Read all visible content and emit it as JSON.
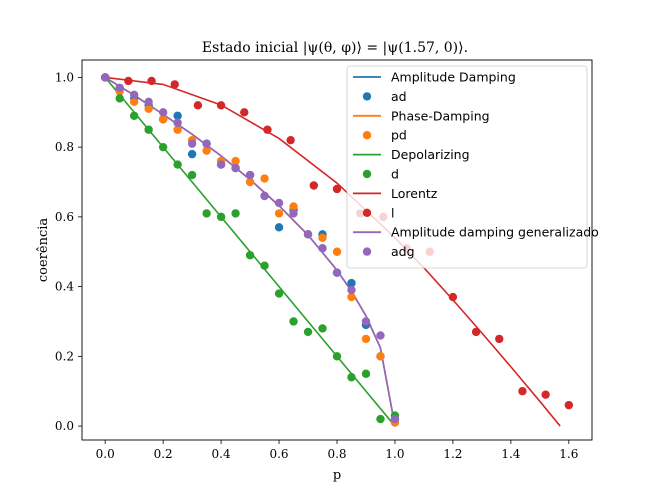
{
  "chart_data": {
    "type": "scatter",
    "title": "Estado inicial |ψ(θ, φ)⟩ = |ψ(1.57, 0)⟩.",
    "xlabel": "p",
    "ylabel": "coerência",
    "xlim": [
      -0.08,
      1.68
    ],
    "ylim": [
      -0.04,
      1.05
    ],
    "xticks": [
      0.0,
      0.2,
      0.4,
      0.6,
      0.8,
      1.0,
      1.2,
      1.4,
      1.6
    ],
    "yticks": [
      0.0,
      0.2,
      0.4,
      0.6,
      0.8,
      1.0
    ],
    "grid": false,
    "legend_position": "top-right",
    "series": [
      {
        "name": "Amplitude Damping",
        "kind": "line",
        "color": "#1f77b4",
        "x": [
          0,
          0.1,
          0.2,
          0.3,
          0.4,
          0.5,
          0.6,
          0.7,
          0.8,
          0.85,
          0.9,
          0.95,
          1.0
        ],
        "y": [
          1.0,
          0.949,
          0.894,
          0.837,
          0.775,
          0.707,
          0.632,
          0.548,
          0.447,
          0.387,
          0.316,
          0.224,
          0.0
        ]
      },
      {
        "name": "ad",
        "kind": "scatter",
        "color": "#1f77b4",
        "x": [
          0.0,
          0.05,
          0.1,
          0.15,
          0.2,
          0.25,
          0.3,
          0.35,
          0.4,
          0.45,
          0.5,
          0.55,
          0.6,
          0.65,
          0.7,
          0.75,
          0.8,
          0.85,
          0.9,
          0.95,
          1.0
        ],
        "y": [
          1.0,
          0.97,
          0.94,
          0.92,
          0.88,
          0.89,
          0.78,
          0.81,
          0.75,
          0.74,
          0.72,
          0.66,
          0.57,
          0.62,
          0.55,
          0.55,
          0.44,
          0.41,
          0.29,
          0.2,
          0.02
        ]
      },
      {
        "name": "Phase-Damping",
        "kind": "line",
        "color": "#ff7f0e",
        "x": [
          0,
          0.1,
          0.2,
          0.3,
          0.4,
          0.5,
          0.6,
          0.7,
          0.8,
          0.85,
          0.9,
          0.95,
          1.0
        ],
        "y": [
          1.0,
          0.949,
          0.894,
          0.837,
          0.775,
          0.707,
          0.632,
          0.548,
          0.447,
          0.387,
          0.316,
          0.224,
          0.0
        ]
      },
      {
        "name": "pd",
        "kind": "scatter",
        "color": "#ff7f0e",
        "x": [
          0.0,
          0.05,
          0.1,
          0.15,
          0.2,
          0.25,
          0.3,
          0.35,
          0.4,
          0.45,
          0.5,
          0.55,
          0.6,
          0.65,
          0.7,
          0.75,
          0.8,
          0.85,
          0.9,
          0.95,
          1.0
        ],
        "y": [
          1.0,
          0.96,
          0.93,
          0.91,
          0.88,
          0.85,
          0.82,
          0.79,
          0.76,
          0.76,
          0.7,
          0.71,
          0.61,
          0.63,
          0.55,
          0.54,
          0.5,
          0.37,
          0.25,
          0.2,
          0.01
        ]
      },
      {
        "name": "Depolarizing",
        "kind": "line",
        "color": "#2ca02c",
        "x": [
          0,
          1.0
        ],
        "y": [
          1.0,
          0.0
        ]
      },
      {
        "name": "d",
        "kind": "scatter",
        "color": "#2ca02c",
        "x": [
          0.0,
          0.05,
          0.1,
          0.15,
          0.2,
          0.25,
          0.3,
          0.35,
          0.4,
          0.45,
          0.5,
          0.55,
          0.6,
          0.65,
          0.7,
          0.75,
          0.8,
          0.85,
          0.9,
          0.95,
          1.0
        ],
        "y": [
          1.0,
          0.94,
          0.89,
          0.85,
          0.8,
          0.75,
          0.72,
          0.61,
          0.6,
          0.61,
          0.49,
          0.46,
          0.38,
          0.3,
          0.27,
          0.28,
          0.2,
          0.14,
          0.15,
          0.02,
          0.03
        ]
      },
      {
        "name": "Lorentz",
        "kind": "line",
        "color": "#d62728",
        "x": [
          0,
          0.2,
          0.4,
          0.6,
          0.8,
          1.0,
          1.1,
          1.2,
          1.3,
          1.4,
          1.5,
          1.57
        ],
        "y": [
          1.0,
          0.98,
          0.921,
          0.825,
          0.697,
          0.54,
          0.454,
          0.362,
          0.267,
          0.17,
          0.071,
          0.0
        ]
      },
      {
        "name": "l",
        "kind": "scatter",
        "color": "#d62728",
        "x": [
          0.0,
          0.08,
          0.16,
          0.24,
          0.32,
          0.4,
          0.48,
          0.56,
          0.64,
          0.72,
          0.8,
          0.88,
          0.96,
          1.04,
          1.12,
          1.2,
          1.28,
          1.36,
          1.44,
          1.52,
          1.6
        ],
        "y": [
          1.0,
          0.99,
          0.99,
          0.98,
          0.92,
          0.92,
          0.9,
          0.85,
          0.82,
          0.69,
          0.68,
          0.61,
          0.6,
          0.51,
          0.5,
          0.37,
          0.27,
          0.25,
          0.1,
          0.09,
          0.06
        ]
      },
      {
        "name": "Amplitude damping generalizado",
        "kind": "line",
        "color": "#9467bd",
        "x": [
          0,
          0.1,
          0.2,
          0.3,
          0.4,
          0.5,
          0.6,
          0.7,
          0.8,
          0.85,
          0.9,
          0.95,
          1.0
        ],
        "y": [
          1.0,
          0.949,
          0.894,
          0.837,
          0.775,
          0.707,
          0.632,
          0.548,
          0.447,
          0.387,
          0.316,
          0.224,
          0.0
        ]
      },
      {
        "name": "adg",
        "kind": "scatter",
        "color": "#9467bd",
        "x": [
          0.0,
          0.05,
          0.1,
          0.15,
          0.2,
          0.25,
          0.3,
          0.35,
          0.4,
          0.45,
          0.5,
          0.55,
          0.6,
          0.65,
          0.7,
          0.75,
          0.8,
          0.85,
          0.9,
          0.95,
          1.0
        ],
        "y": [
          1.0,
          0.97,
          0.95,
          0.93,
          0.9,
          0.87,
          0.81,
          0.81,
          0.75,
          0.74,
          0.72,
          0.66,
          0.64,
          0.61,
          0.55,
          0.51,
          0.44,
          0.39,
          0.3,
          0.26,
          0.02
        ]
      }
    ]
  }
}
